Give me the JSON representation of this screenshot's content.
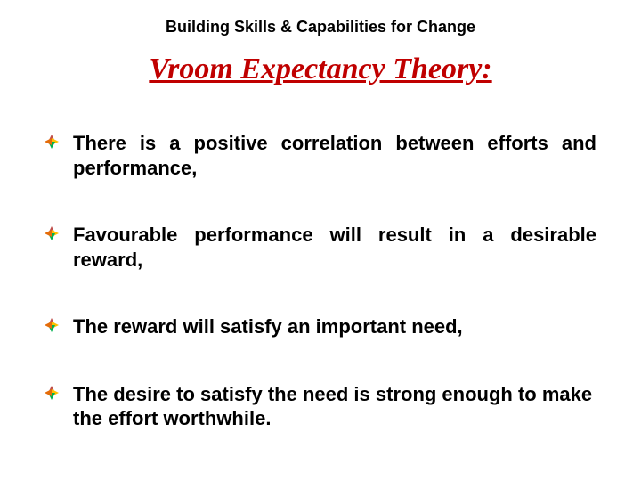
{
  "header": {
    "text": "Building Skills & Capabilities for Change",
    "fontsize": 18,
    "color": "#000000"
  },
  "title": {
    "text": "Vroom Expectancy Theory:",
    "fontsize": 34,
    "color": "#c00000",
    "font_family": "Times New Roman",
    "font_style": "italic",
    "underline": true
  },
  "bullets": {
    "fontsize": 22,
    "color": "#000000",
    "icon_colors": {
      "top": "#c0504d",
      "right": "#ffc000",
      "bottom": "#00b050",
      "left": "#e46c0a"
    },
    "gap": 48,
    "items": [
      {
        "text": "There is a positive correlation between efforts and performance,",
        "justify": true
      },
      {
        "text": "Favourable performance will result in a desirable reward,",
        "justify": true
      },
      {
        "text": "The reward will satisfy an important need,",
        "justify": false
      },
      {
        "text": "The desire to satisfy the need is strong enough to make the effort worthwhile.",
        "justify": false
      }
    ]
  },
  "background_color": "#ffffff"
}
